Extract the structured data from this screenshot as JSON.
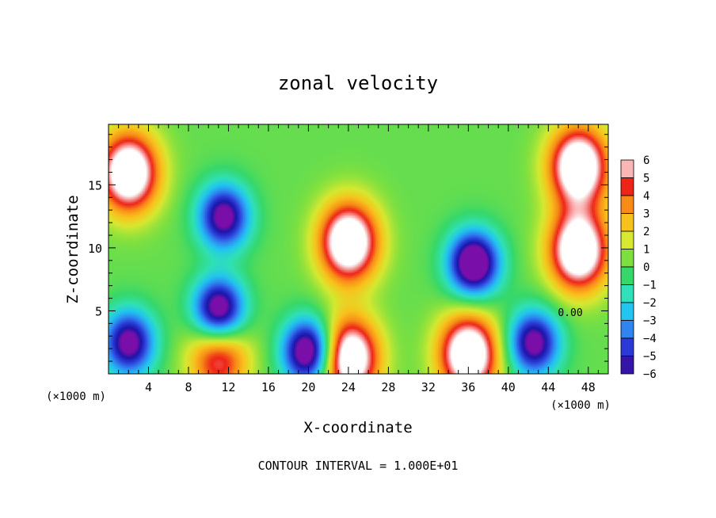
{
  "chart_data": {
    "type": "heatmap",
    "title": "zonal velocity",
    "xlabel": "X-coordinate",
    "ylabel": "Z-coordinate",
    "x_unit_left": "(×1000 m)",
    "x_unit_right": "(×1000 m)",
    "footer": "CONTOUR INTERVAL = 1.000E+01",
    "xlim": [
      0,
      50
    ],
    "ylim": [
      0,
      19.8
    ],
    "x_ticks": [
      4,
      8,
      12,
      16,
      20,
      24,
      28,
      32,
      36,
      40,
      44,
      48
    ],
    "y_ticks": [
      5,
      10,
      15
    ],
    "colorbar": {
      "min": -6,
      "max": 6,
      "labels": [
        "6",
        "5",
        "4",
        "3",
        "2",
        "1",
        "0",
        "−1",
        "−2",
        "−3",
        "−4",
        "−5",
        "−6"
      ],
      "values": [
        6,
        5,
        4,
        3,
        2,
        1,
        0,
        -1,
        -2,
        -3,
        -4,
        -5,
        -6
      ]
    },
    "contour_label": "0.00",
    "features": [
      {
        "kind": "max",
        "x": 2,
        "y": 16,
        "value": 6
      },
      {
        "kind": "max",
        "x": 24,
        "y": 10.5,
        "value": 6
      },
      {
        "kind": "max",
        "x": 47,
        "y": 16.5,
        "value": 6
      },
      {
        "kind": "max",
        "x": 47,
        "y": 9.8,
        "value": 6
      },
      {
        "kind": "max",
        "x": 24,
        "y": 1.3,
        "value": 6
      },
      {
        "kind": "max",
        "x": 36,
        "y": 1.6,
        "value": 6
      },
      {
        "kind": "max",
        "x": 11,
        "y": 1.5,
        "value": 4
      },
      {
        "kind": "min",
        "x": 11.5,
        "y": 12.5,
        "value": -5
      },
      {
        "kind": "min",
        "x": 11,
        "y": 5,
        "value": -6
      },
      {
        "kind": "min",
        "x": 36.5,
        "y": 8.8,
        "value": -6
      },
      {
        "kind": "min",
        "x": 20,
        "y": 1.8,
        "value": -6
      },
      {
        "kind": "min",
        "x": 2,
        "y": 2.5,
        "value": -5
      },
      {
        "kind": "min",
        "x": 42.5,
        "y": 2.5,
        "value": -5
      }
    ]
  }
}
